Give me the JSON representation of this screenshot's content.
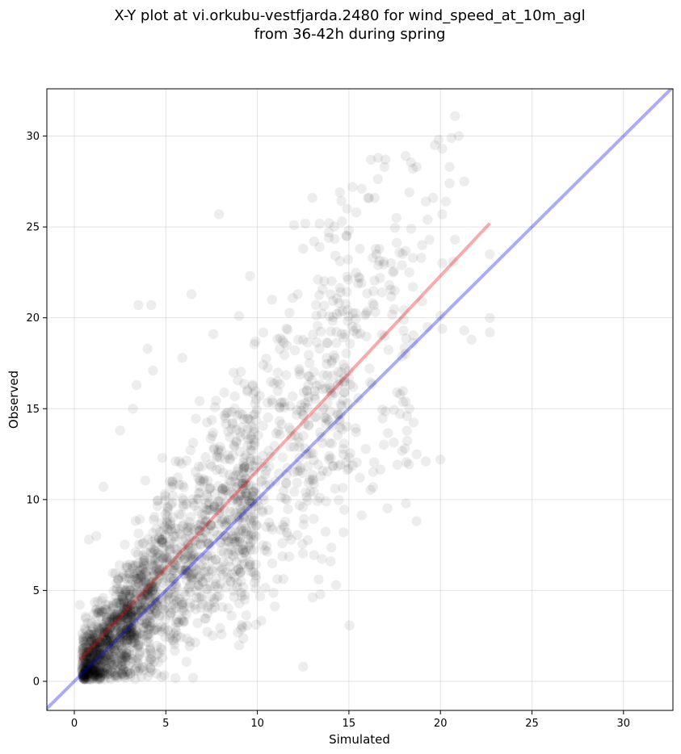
{
  "chart_data": {
    "type": "scatter",
    "title_lines": [
      "X-Y plot at vi.orkubu-vestfjarda.2480 for wind_speed_at_10m_agl",
      "from 36-42h during spring"
    ],
    "xlabel": "Simulated",
    "ylabel": "Observed",
    "xlim": [
      -1.5,
      32.7
    ],
    "ylim": [
      -1.6,
      32.6
    ],
    "xticks": [
      "0",
      "5",
      "10",
      "15",
      "20",
      "25",
      "30"
    ],
    "yticks": [
      "0",
      "5",
      "10",
      "15",
      "20",
      "25",
      "30"
    ],
    "grid": true,
    "point_color": "#000000",
    "point_opacity": 0.07,
    "one_to_one_line": {
      "color": "#0000ee",
      "opacity": 0.33
    },
    "fit_line": {
      "color": "#ee0000",
      "opacity": 0.33,
      "x": [
        0.3,
        22.7
      ],
      "y": [
        1.2,
        25.2
      ]
    },
    "highlighted_points": [
      [
        20.8,
        31.1
      ],
      [
        21.0,
        30.0
      ],
      [
        20.6,
        29.9
      ],
      [
        19.7,
        29.5
      ],
      [
        19.9,
        29.8
      ],
      [
        20.1,
        29.3
      ],
      [
        18.1,
        28.9
      ],
      [
        17.0,
        28.7
      ],
      [
        16.6,
        28.8
      ],
      [
        16.2,
        28.7
      ],
      [
        18.5,
        28.2
      ],
      [
        18.7,
        28.3
      ],
      [
        20.5,
        28.3
      ],
      [
        21.3,
        27.5
      ],
      [
        20.5,
        27.4
      ],
      [
        15.2,
        27.2
      ],
      [
        15.7,
        27.1
      ],
      [
        16.1,
        26.6
      ],
      [
        16.4,
        26.6
      ],
      [
        14.5,
        26.9
      ],
      [
        13.0,
        26.6
      ],
      [
        18.3,
        26.9
      ],
      [
        19.2,
        26.4
      ],
      [
        19.6,
        26.6
      ],
      [
        20.3,
        26.4
      ],
      [
        14.9,
        26.0
      ],
      [
        15.4,
        25.8
      ],
      [
        12.0,
        25.1
      ],
      [
        7.9,
        25.7
      ],
      [
        17.6,
        25.5
      ],
      [
        19.3,
        25.4
      ],
      [
        20.1,
        25.7
      ],
      [
        18.4,
        24.9
      ],
      [
        13.9,
        24.7
      ],
      [
        13.9,
        24.4
      ],
      [
        13.1,
        24.2
      ],
      [
        12.5,
        23.8
      ],
      [
        13.4,
        23.9
      ],
      [
        15.6,
        23.8
      ],
      [
        16.5,
        23.5
      ],
      [
        19.0,
        24.0
      ],
      [
        19.4,
        24.3
      ],
      [
        20.8,
        24.3
      ],
      [
        22.7,
        23.5
      ],
      [
        16.3,
        23.3
      ],
      [
        16.9,
        23.1
      ],
      [
        17.3,
        23.0
      ],
      [
        18.5,
        23.3
      ],
      [
        16.6,
        22.9
      ],
      [
        17.4,
        22.5
      ],
      [
        17.9,
        22.9
      ],
      [
        20.1,
        23.0
      ],
      [
        20.7,
        23.1
      ],
      [
        16.7,
        22.2
      ],
      [
        18.3,
        22.5
      ],
      [
        15.5,
        21.9
      ],
      [
        17.2,
        21.8
      ],
      [
        18.5,
        21.7
      ],
      [
        16.8,
        21.4
      ],
      [
        17.5,
        21.5
      ],
      [
        19.0,
        20.9
      ],
      [
        9.6,
        22.3
      ],
      [
        12.2,
        21.3
      ],
      [
        6.4,
        21.3
      ],
      [
        3.5,
        20.7
      ],
      [
        4.2,
        20.7
      ],
      [
        14.0,
        21.3
      ],
      [
        16.3,
        20.8
      ],
      [
        10.8,
        21.0
      ],
      [
        9.0,
        20.1
      ],
      [
        22.7,
        20.0
      ],
      [
        22.7,
        19.2
      ],
      [
        20.0,
        20.1
      ],
      [
        18.0,
        19.9
      ],
      [
        19.3,
        19.5
      ],
      [
        20.1,
        19.4
      ],
      [
        21.3,
        19.3
      ],
      [
        7.6,
        19.1
      ],
      [
        4.0,
        18.3
      ],
      [
        4.3,
        17.1
      ],
      [
        5.9,
        17.8
      ],
      [
        3.4,
        16.3
      ],
      [
        3.2,
        15.0
      ],
      [
        2.5,
        13.8
      ],
      [
        1.6,
        10.7
      ],
      [
        0.8,
        7.8
      ],
      [
        1.2,
        8.0
      ],
      [
        0.3,
        4.2
      ],
      [
        12.5,
        0.8
      ],
      [
        14.3,
        5.3
      ],
      [
        14.0,
        6.6
      ],
      [
        14.7,
        8.2
      ],
      [
        19.2,
        12.1
      ],
      [
        20.0,
        12.2
      ],
      [
        15.6,
        11.2
      ],
      [
        17.8,
        14.7
      ],
      [
        18.3,
        15.0
      ],
      [
        17.8,
        15.8
      ],
      [
        18.1,
        15.4
      ],
      [
        21.7,
        18.8
      ]
    ]
  }
}
